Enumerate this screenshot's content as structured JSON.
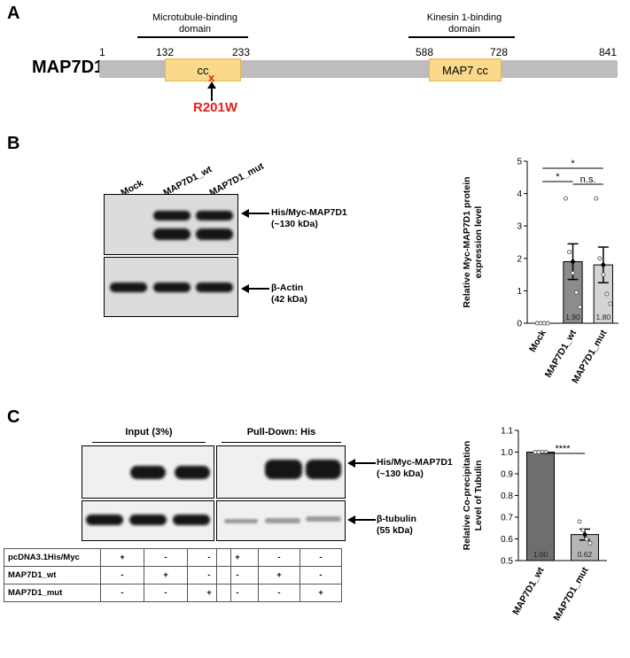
{
  "panel_a": {
    "letter": "A",
    "protein": "MAP7D1",
    "left_domain_label_1": "Microtubule-binding",
    "left_domain_label_2": "domain",
    "right_domain_label_1": "Kinesin 1-binding",
    "right_domain_label_2": "domain",
    "positions": [
      "1",
      "132",
      "233",
      "588",
      "728",
      "841"
    ],
    "cc_label": "cc",
    "map7cc_label": "MAP7 cc",
    "mutation_mark": "x",
    "mutation": "R201W",
    "colors": {
      "domain": "#fad98a",
      "bar": "#bdbdbd",
      "mutation": "#e32219"
    }
  },
  "panel_b": {
    "letter": "B",
    "lanes": [
      "Mock",
      "MAP7D1_wt",
      "MAP7D1_mut"
    ],
    "blot1_label_1": "His/Myc-MAP7D1",
    "blot1_label_2": "(~130 kDa)",
    "blot2_label_1": "β-Actin",
    "blot2_label_2": "(42 kDa)"
  },
  "panel_c": {
    "letter": "C",
    "input_title": "Input (3%)",
    "pulldown_title": "Pull-Down:  His",
    "blot1_label_1": "His/Myc-MAP7D1",
    "blot1_label_2": "(~130 kDa)",
    "blot2_label_1": "β-tubulin",
    "blot2_label_2": "(55 kDa)",
    "table_rows": [
      {
        "label": "pcDNA3.1His/Myc",
        "input": [
          "+",
          "-",
          "-"
        ],
        "pulldown": [
          "+",
          "-",
          "-"
        ]
      },
      {
        "label": "MAP7D1_wt",
        "input": [
          "-",
          "+",
          "-"
        ],
        "pulldown": [
          "-",
          "+",
          "-"
        ]
      },
      {
        "label": "MAP7D1_mut",
        "input": [
          "-",
          "-",
          "+"
        ],
        "pulldown": [
          "-",
          "-",
          "+"
        ]
      }
    ]
  },
  "chart_data": [
    {
      "type": "bar",
      "categories": [
        "Mock",
        "MAP7D1_wt",
        "MAP7D1_mut"
      ],
      "values": [
        0,
        1.9,
        1.8
      ],
      "value_labels": [
        "",
        "1.90",
        "1.80"
      ],
      "errors": [
        0,
        0.55,
        0.55
      ],
      "points": [
        [
          0,
          0,
          0,
          0
        ],
        [
          3.85,
          2.2,
          1.55,
          0.95,
          0.5
        ],
        [
          3.85,
          2.0,
          1.5,
          0.9,
          0.6
        ]
      ],
      "ylabel": "Relative Myc-MAP7D1 protein expression level",
      "ylim": [
        0,
        5
      ],
      "yticks": [
        "0",
        "1",
        "2",
        "3",
        "4",
        "5"
      ],
      "significance": [
        {
          "from": 0,
          "to": 1,
          "label": "*"
        },
        {
          "from": 0,
          "to": 2,
          "label": "*"
        },
        {
          "from": 1,
          "to": 2,
          "label": "n.s."
        }
      ],
      "colors": [
        "#ffffff",
        "#8c8c8c",
        "#d4d4d4"
      ]
    },
    {
      "type": "bar",
      "categories": [
        "MAP7D1_wt",
        "MAP7D1_mut"
      ],
      "values": [
        1.0,
        0.62
      ],
      "value_labels": [
        "1.00",
        "0.62"
      ],
      "errors": [
        0,
        0.025
      ],
      "points": [
        [
          1,
          1,
          1,
          1
        ],
        [
          0.68,
          0.64,
          0.6,
          0.58
        ]
      ],
      "ylabel": "Relative Co-precipitation Level of Tubulin",
      "ylim": [
        0.5,
        1.1
      ],
      "yticks": [
        "0.5",
        "0.6",
        "0.7",
        "0.8",
        "0.9",
        "1.0",
        "1.1"
      ],
      "significance": [
        {
          "from": 0,
          "to": 1,
          "label": "****"
        }
      ],
      "colors": [
        "#6e6e6e",
        "#b4b4b4"
      ]
    }
  ]
}
